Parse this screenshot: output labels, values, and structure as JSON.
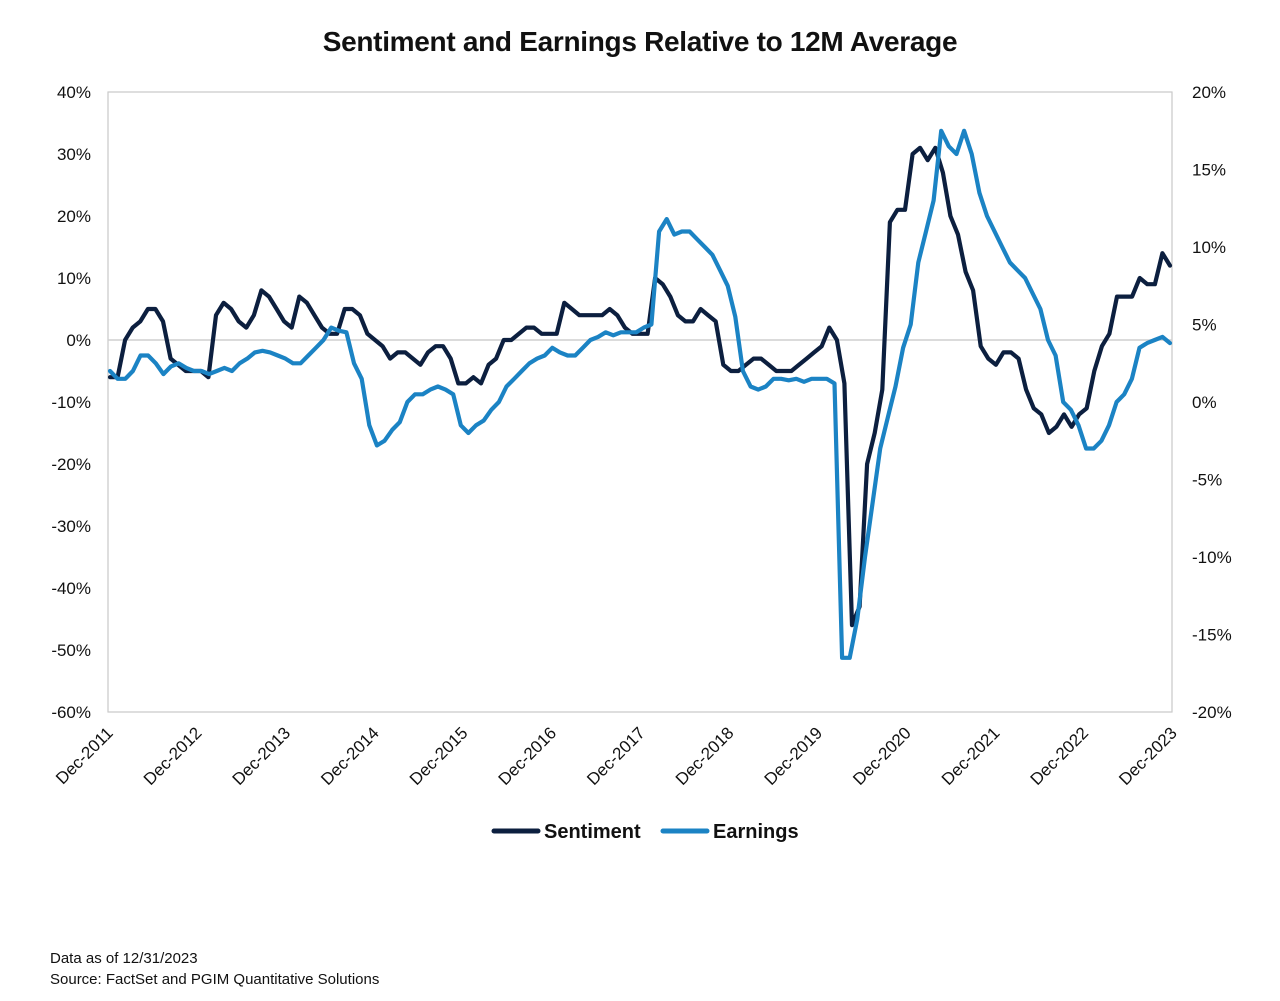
{
  "chart_data": {
    "type": "line",
    "title": "Sentiment and Earnings Relative to 12M Average",
    "x_range": [
      "2011-12",
      "2023-12"
    ],
    "x_tick_labels": [
      "Dec-2011",
      "Dec-2012",
      "Dec-2013",
      "Dec-2014",
      "Dec-2015",
      "Dec-2016",
      "Dec-2017",
      "Dec-2018",
      "Dec-2019",
      "Dec-2020",
      "Dec-2021",
      "Dec-2022",
      "Dec-2023"
    ],
    "y_left": {
      "min": -60,
      "max": 40,
      "step": 10,
      "unit": "%"
    },
    "y_right": {
      "min": -20,
      "max": 20,
      "step": 5,
      "unit": "%"
    },
    "y_left_tick_labels": [
      "40%",
      "30%",
      "20%",
      "10%",
      "0%",
      "-10%",
      "-20%",
      "-30%",
      "-40%",
      "-50%",
      "-60%"
    ],
    "y_right_tick_labels": [
      "20%",
      "15%",
      "10%",
      "5%",
      "0%",
      "-5%",
      "-10%",
      "-15%",
      "-20%"
    ],
    "zero_line": true,
    "legend_position": "bottom-center",
    "series": [
      {
        "name": "Sentiment",
        "axis": "left",
        "color": "#0c1f3f",
        "values": [
          -6,
          -6,
          0,
          2,
          3,
          5,
          5,
          3,
          -3,
          -4,
          -5,
          -5,
          -5,
          -6,
          4,
          6,
          5,
          3,
          2,
          4,
          8,
          7,
          5,
          3,
          2,
          7,
          6,
          4,
          2,
          1,
          1,
          5,
          5,
          4,
          1,
          0,
          -1,
          -3,
          -2,
          -2,
          -3,
          -4,
          -2,
          -1,
          -1,
          -3,
          -7,
          -7,
          -6,
          -7,
          -4,
          -3,
          0,
          0,
          1,
          2,
          2,
          1,
          1,
          1,
          6,
          5,
          4,
          4,
          4,
          4,
          5,
          4,
          2,
          1,
          1,
          1,
          10,
          9,
          7,
          4,
          3,
          3,
          5,
          4,
          3,
          -4,
          -5,
          -5,
          -4,
          -3,
          -3,
          -4,
          -5,
          -5,
          -5,
          -4,
          -3,
          -2,
          -1,
          2,
          0,
          -7,
          -46,
          -43,
          -20,
          -15,
          -8,
          19,
          21,
          21,
          30,
          31,
          29,
          31,
          27,
          20,
          17,
          11,
          8,
          -1,
          -3,
          -4,
          -2,
          -2,
          -3,
          -8,
          -11,
          -12,
          -15,
          -14,
          -12,
          -14,
          -12,
          -11,
          -5,
          -1,
          1,
          7,
          7,
          7,
          10,
          9,
          9,
          14,
          12
        ]
      },
      {
        "name": "Earnings",
        "axis": "right",
        "color": "#1b83c4",
        "values": [
          2.0,
          1.5,
          1.5,
          2.0,
          3.0,
          3.0,
          2.5,
          1.8,
          2.3,
          2.5,
          2.2,
          2.0,
          2.0,
          1.8,
          2.0,
          2.2,
          2.0,
          2.5,
          2.8,
          3.2,
          3.3,
          3.2,
          3.0,
          2.8,
          2.5,
          2.5,
          3.0,
          3.5,
          4.0,
          4.8,
          4.6,
          4.5,
          2.5,
          1.5,
          -1.5,
          -2.8,
          -2.5,
          -1.8,
          -1.3,
          0.0,
          0.5,
          0.5,
          0.8,
          1.0,
          0.8,
          0.5,
          -1.5,
          -2.0,
          -1.5,
          -1.2,
          -0.5,
          0.0,
          1.0,
          1.5,
          2.0,
          2.5,
          2.8,
          3.0,
          3.5,
          3.2,
          3.0,
          3.0,
          3.5,
          4.0,
          4.2,
          4.5,
          4.3,
          4.5,
          4.5,
          4.5,
          4.8,
          5.0,
          11.0,
          11.8,
          10.8,
          11.0,
          11.0,
          10.5,
          10.0,
          9.5,
          8.5,
          7.5,
          5.5,
          2.0,
          1.0,
          0.8,
          1.0,
          1.5,
          1.5,
          1.4,
          1.5,
          1.3,
          1.5,
          1.5,
          1.5,
          1.2,
          -16.5,
          -16.5,
          -14.0,
          -10.0,
          -6.5,
          -3.0,
          -1.0,
          1.0,
          3.5,
          5.0,
          9.0,
          11.0,
          13.0,
          17.5,
          16.5,
          16.0,
          17.5,
          16.0,
          13.5,
          12.0,
          11.0,
          10.0,
          9.0,
          8.5,
          8.0,
          7.0,
          6.0,
          4.0,
          3.0,
          0.0,
          -0.5,
          -1.5,
          -3.0,
          -3.0,
          -2.5,
          -1.5,
          0.0,
          0.5,
          1.5,
          3.5,
          3.8,
          4.0,
          4.2,
          3.8
        ]
      }
    ]
  },
  "notes": {
    "data_as_of": "Data as of 12/31/2023",
    "source": "Source: FactSet and PGIM Quantitative Solutions"
  }
}
